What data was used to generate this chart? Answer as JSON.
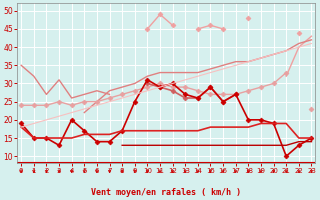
{
  "x": [
    0,
    1,
    2,
    3,
    4,
    5,
    6,
    7,
    8,
    9,
    10,
    11,
    12,
    13,
    14,
    15,
    16,
    17,
    18,
    19,
    20,
    21,
    22,
    23
  ],
  "lines": [
    {
      "y": [
        null,
        null,
        null,
        null,
        null,
        null,
        null,
        null,
        null,
        null,
        null,
        null,
        null,
        null,
        null,
        null,
        null,
        null,
        null,
        null,
        null,
        32,
        40,
        43
      ],
      "color": "#f0a0a0",
      "lw": 1.0,
      "marker": null
    },
    {
      "y": [
        null,
        null,
        null,
        null,
        null,
        null,
        null,
        null,
        null,
        null,
        45,
        49,
        46,
        null,
        45,
        46,
        45,
        null,
        48,
        null,
        null,
        null,
        44,
        null
      ],
      "color": "#f0a0a0",
      "lw": 1.0,
      "marker": "D",
      "ms": 2.5
    },
    {
      "y": [
        null,
        19,
        null,
        null,
        null,
        22,
        25,
        28,
        29,
        30,
        32,
        33,
        33,
        33,
        33,
        34,
        35,
        36,
        36,
        37,
        38,
        39,
        41,
        42
      ],
      "color": "#e08080",
      "lw": 1.0,
      "marker": null
    },
    {
      "y": [
        35,
        32,
        27,
        31,
        26,
        27,
        28,
        27,
        null,
        null,
        null,
        null,
        null,
        null,
        null,
        null,
        null,
        null,
        null,
        null,
        null,
        null,
        null,
        null
      ],
      "color": "#e08080",
      "lw": 1.0,
      "marker": null
    },
    {
      "y": [
        24,
        24,
        24,
        25,
        24,
        25,
        25,
        26,
        27,
        28,
        29,
        30,
        29,
        29,
        28,
        27,
        27,
        27,
        28,
        29,
        30,
        33,
        null,
        23
      ],
      "color": "#e8a0a0",
      "lw": 1.0,
      "marker": "D",
      "ms": 2.5
    },
    {
      "y": [
        null,
        null,
        null,
        null,
        null,
        null,
        null,
        null,
        null,
        null,
        30,
        29,
        28,
        26,
        26,
        29,
        25,
        27,
        null,
        null,
        null,
        null,
        null,
        null
      ],
      "color": "#d06060",
      "lw": 1.2,
      "marker": "D",
      "ms": 2.5
    },
    {
      "y": [
        19,
        15,
        15,
        13,
        20,
        17,
        14,
        14,
        17,
        25,
        31,
        29,
        30,
        27,
        26,
        29,
        25,
        27,
        20,
        20,
        19,
        10,
        13,
        15
      ],
      "color": "#cc0000",
      "lw": 1.2,
      "marker": "D",
      "ms": 2.5
    },
    {
      "y": [
        18,
        15,
        15,
        15,
        15,
        16,
        16,
        16,
        17,
        17,
        17,
        17,
        17,
        17,
        17,
        18,
        18,
        18,
        18,
        19,
        19,
        19,
        15,
        15
      ],
      "color": "#dd2222",
      "lw": 1.2,
      "marker": null
    },
    {
      "y": [
        null,
        null,
        null,
        null,
        null,
        null,
        null,
        null,
        13,
        13,
        13,
        13,
        13,
        13,
        13,
        13,
        13,
        13,
        13,
        13,
        13,
        13,
        14,
        14
      ],
      "color": "#bb0000",
      "lw": 1.0,
      "marker": null
    },
    {
      "y": [
        18,
        19,
        20,
        21,
        22,
        23,
        24,
        25,
        26,
        27,
        28,
        29,
        30,
        31,
        32,
        33,
        34,
        35,
        36,
        37,
        38,
        39,
        40,
        41
      ],
      "color": "#f8c0c0",
      "lw": 0.8,
      "marker": null
    }
  ],
  "xlabel": "Vent moyen/en rafales ( km/h )",
  "xlim": [
    -0.3,
    23.3
  ],
  "ylim": [
    8,
    52
  ],
  "yticks": [
    10,
    15,
    20,
    25,
    30,
    35,
    40,
    45,
    50
  ],
  "xticks": [
    0,
    1,
    2,
    3,
    4,
    5,
    6,
    7,
    8,
    9,
    10,
    11,
    12,
    13,
    14,
    15,
    16,
    17,
    18,
    19,
    20,
    21,
    22,
    23
  ],
  "bg_color": "#d6f0ee",
  "grid_color": "#b0d8d8",
  "tick_color": "#cc0000",
  "label_color": "#cc0000"
}
